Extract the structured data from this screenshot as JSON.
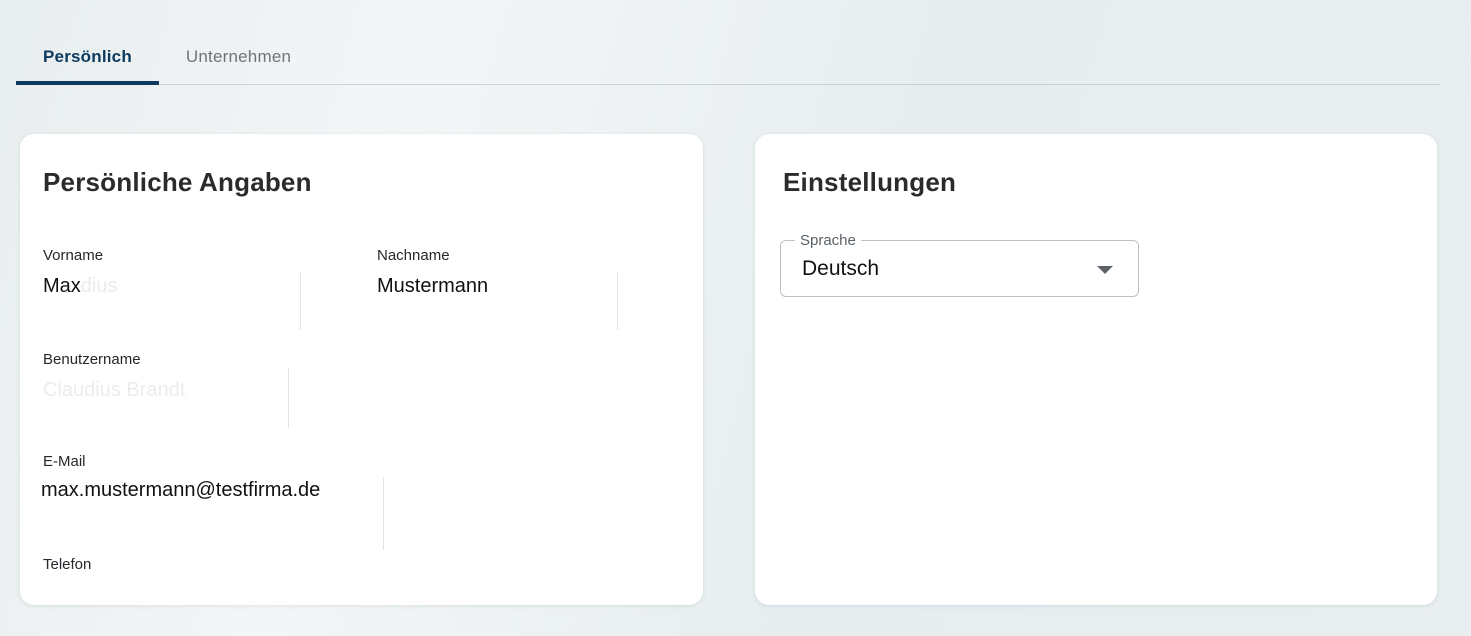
{
  "tabs": [
    {
      "label": "Persönlich",
      "active": true
    },
    {
      "label": "Unternehmen",
      "active": false
    }
  ],
  "cards": {
    "personal": {
      "title": "Persönliche Angaben",
      "fields": {
        "vorname": {
          "label": "Vorname",
          "value": "Max",
          "ghost": "dius"
        },
        "nachname": {
          "label": "Nachname",
          "value": "Mustermann",
          "ghost": ""
        },
        "benutzername": {
          "label": "Benutzername",
          "value": "",
          "ghost": "Claudius Brandt"
        },
        "email": {
          "label": "E-Mail",
          "value": "max.mustermann@testfirma.de",
          "ghost": ""
        },
        "telefon": {
          "label": "Telefon",
          "value": "",
          "ghost": ""
        }
      }
    },
    "settings": {
      "title": "Einstellungen",
      "language_select": {
        "label": "Sprache",
        "value": "Deutsch",
        "icon": "dropdown-arrow-icon"
      }
    }
  },
  "colors": {
    "accent": "#0c3a5e",
    "tab_inactive": "#6e747b",
    "page_background": "#e9eef0",
    "card_background": "#ffffff",
    "ghost_text": "#ececec"
  }
}
